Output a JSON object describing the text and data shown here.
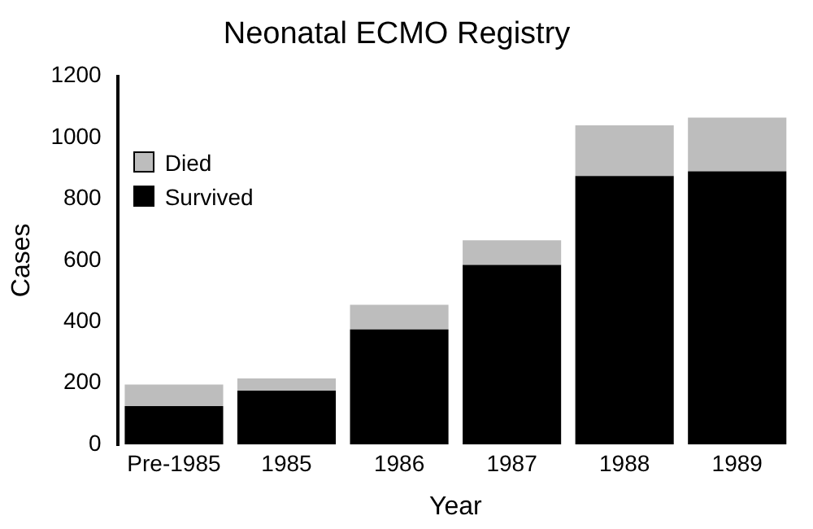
{
  "chart_data": {
    "type": "bar",
    "title": "Neonatal ECMO Registry",
    "xlabel": "Year",
    "ylabel": "Cases",
    "categories": [
      "Pre-1985",
      "1985",
      "1986",
      "1987",
      "1988",
      "1989"
    ],
    "stacked": true,
    "legend": "top left",
    "grid": false,
    "ylim": [
      0,
      1200
    ],
    "yticks": [
      0,
      200,
      400,
      600,
      800,
      1000,
      1200
    ],
    "series": [
      {
        "name": "Survived",
        "color": "#000000",
        "values": [
          125,
          175,
          375,
          585,
          875,
          890
        ]
      },
      {
        "name": "Died",
        "color": "#bdbdbd",
        "values": [
          70,
          40,
          80,
          80,
          165,
          175
        ]
      }
    ]
  }
}
